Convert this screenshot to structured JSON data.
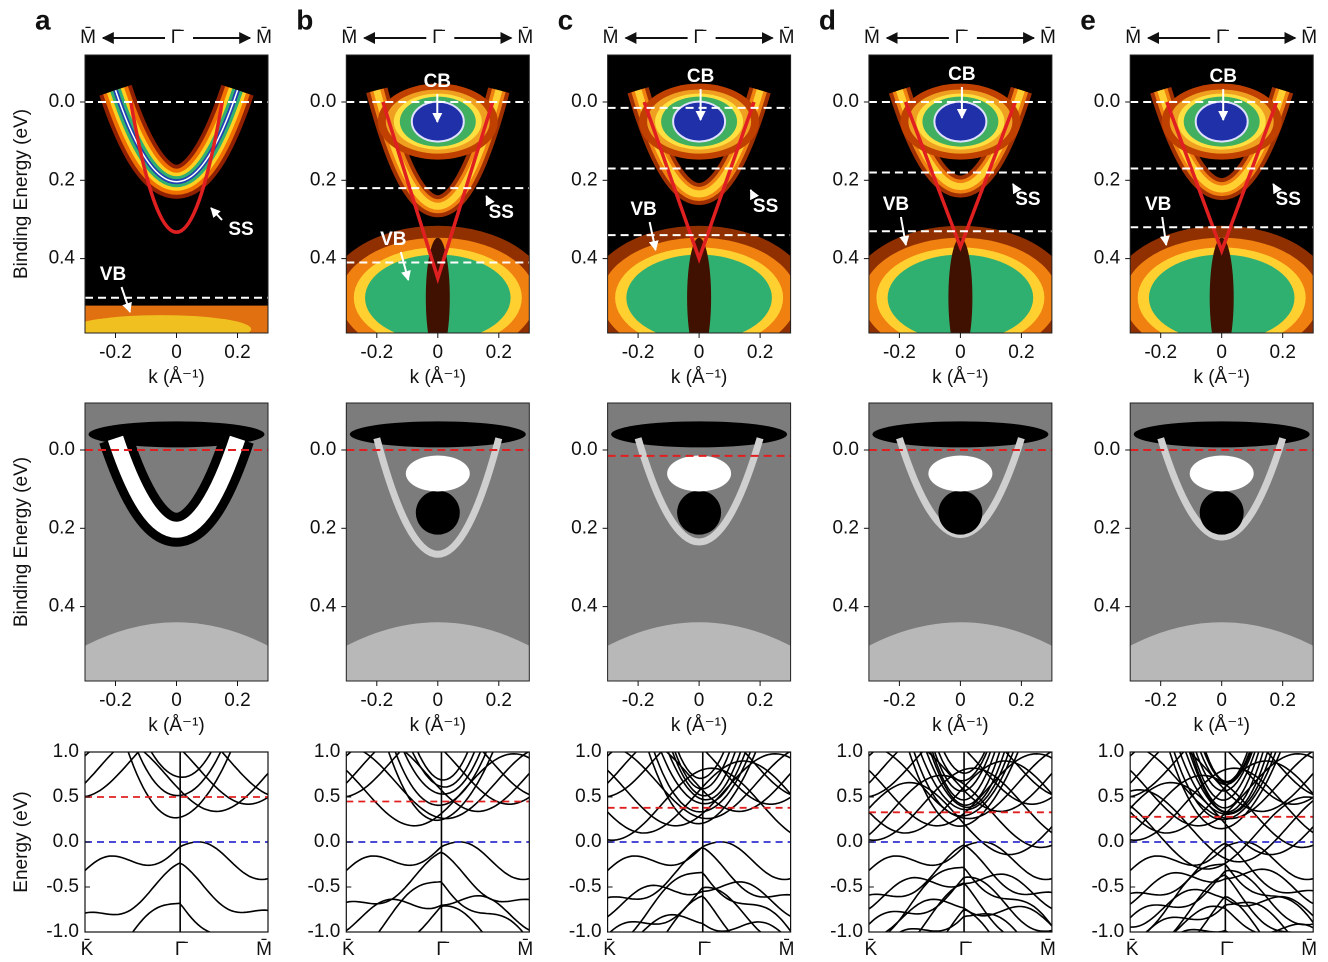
{
  "direction": [
    "M̄",
    "Γ̄",
    "M̄"
  ],
  "arpes_axes": {
    "xlim": [
      -0.3,
      0.3
    ],
    "ylim": [
      -0.12,
      0.59
    ],
    "xticks": [
      {
        "value": -0.2,
        "label": "-0.2"
      },
      0,
      0.2
    ],
    "yticks": [
      {
        "value": 0,
        "label": "0.0"
      },
      0.2,
      0.4
    ],
    "xlabel": "k (Å⁻¹)",
    "ylabel": "Binding Energy (eV)"
  },
  "band_axes": {
    "ylim": [
      -1,
      1
    ],
    "yticks": [
      {
        "value": 1,
        "label": "1.0"
      },
      0.5,
      {
        "value": 0,
        "label": "0.0"
      },
      -0.5,
      {
        "value": -1,
        "label": "-1.0"
      }
    ],
    "xticks": [
      "K̄",
      "Γ̄",
      "M̄"
    ],
    "ylabel": "Energy (eV)",
    "dirac": 0
  },
  "panels": [
    {
      "label": "a",
      "annotations": [
        "SS",
        "VB"
      ],
      "dashed": [
        0,
        0.5
      ],
      "v_apex": 0.35,
      "fermi": 0.5
    },
    {
      "label": "b",
      "annotations": [
        "CB",
        "SS",
        "VB"
      ],
      "dashed": [
        0,
        0.22,
        0.41
      ],
      "v_apex": 0.45,
      "fermi": 0.45
    },
    {
      "label": "c",
      "annotations": [
        "CB",
        "SS",
        "VB"
      ],
      "dashed": [
        0.015,
        0.17,
        0.34
      ],
      "v_apex": 0.4,
      "fermi": 0.38
    },
    {
      "label": "d",
      "annotations": [
        "CB",
        "SS",
        "VB"
      ],
      "dashed": [
        0,
        0.18,
        0.33
      ],
      "v_apex": 0.37,
      "fermi": 0.33
    },
    {
      "label": "e",
      "annotations": [
        "CB",
        "SS",
        "VB"
      ],
      "dashed": [
        0,
        0.17,
        0.32
      ],
      "v_apex": 0.38,
      "fermi": 0.28
    }
  ]
}
